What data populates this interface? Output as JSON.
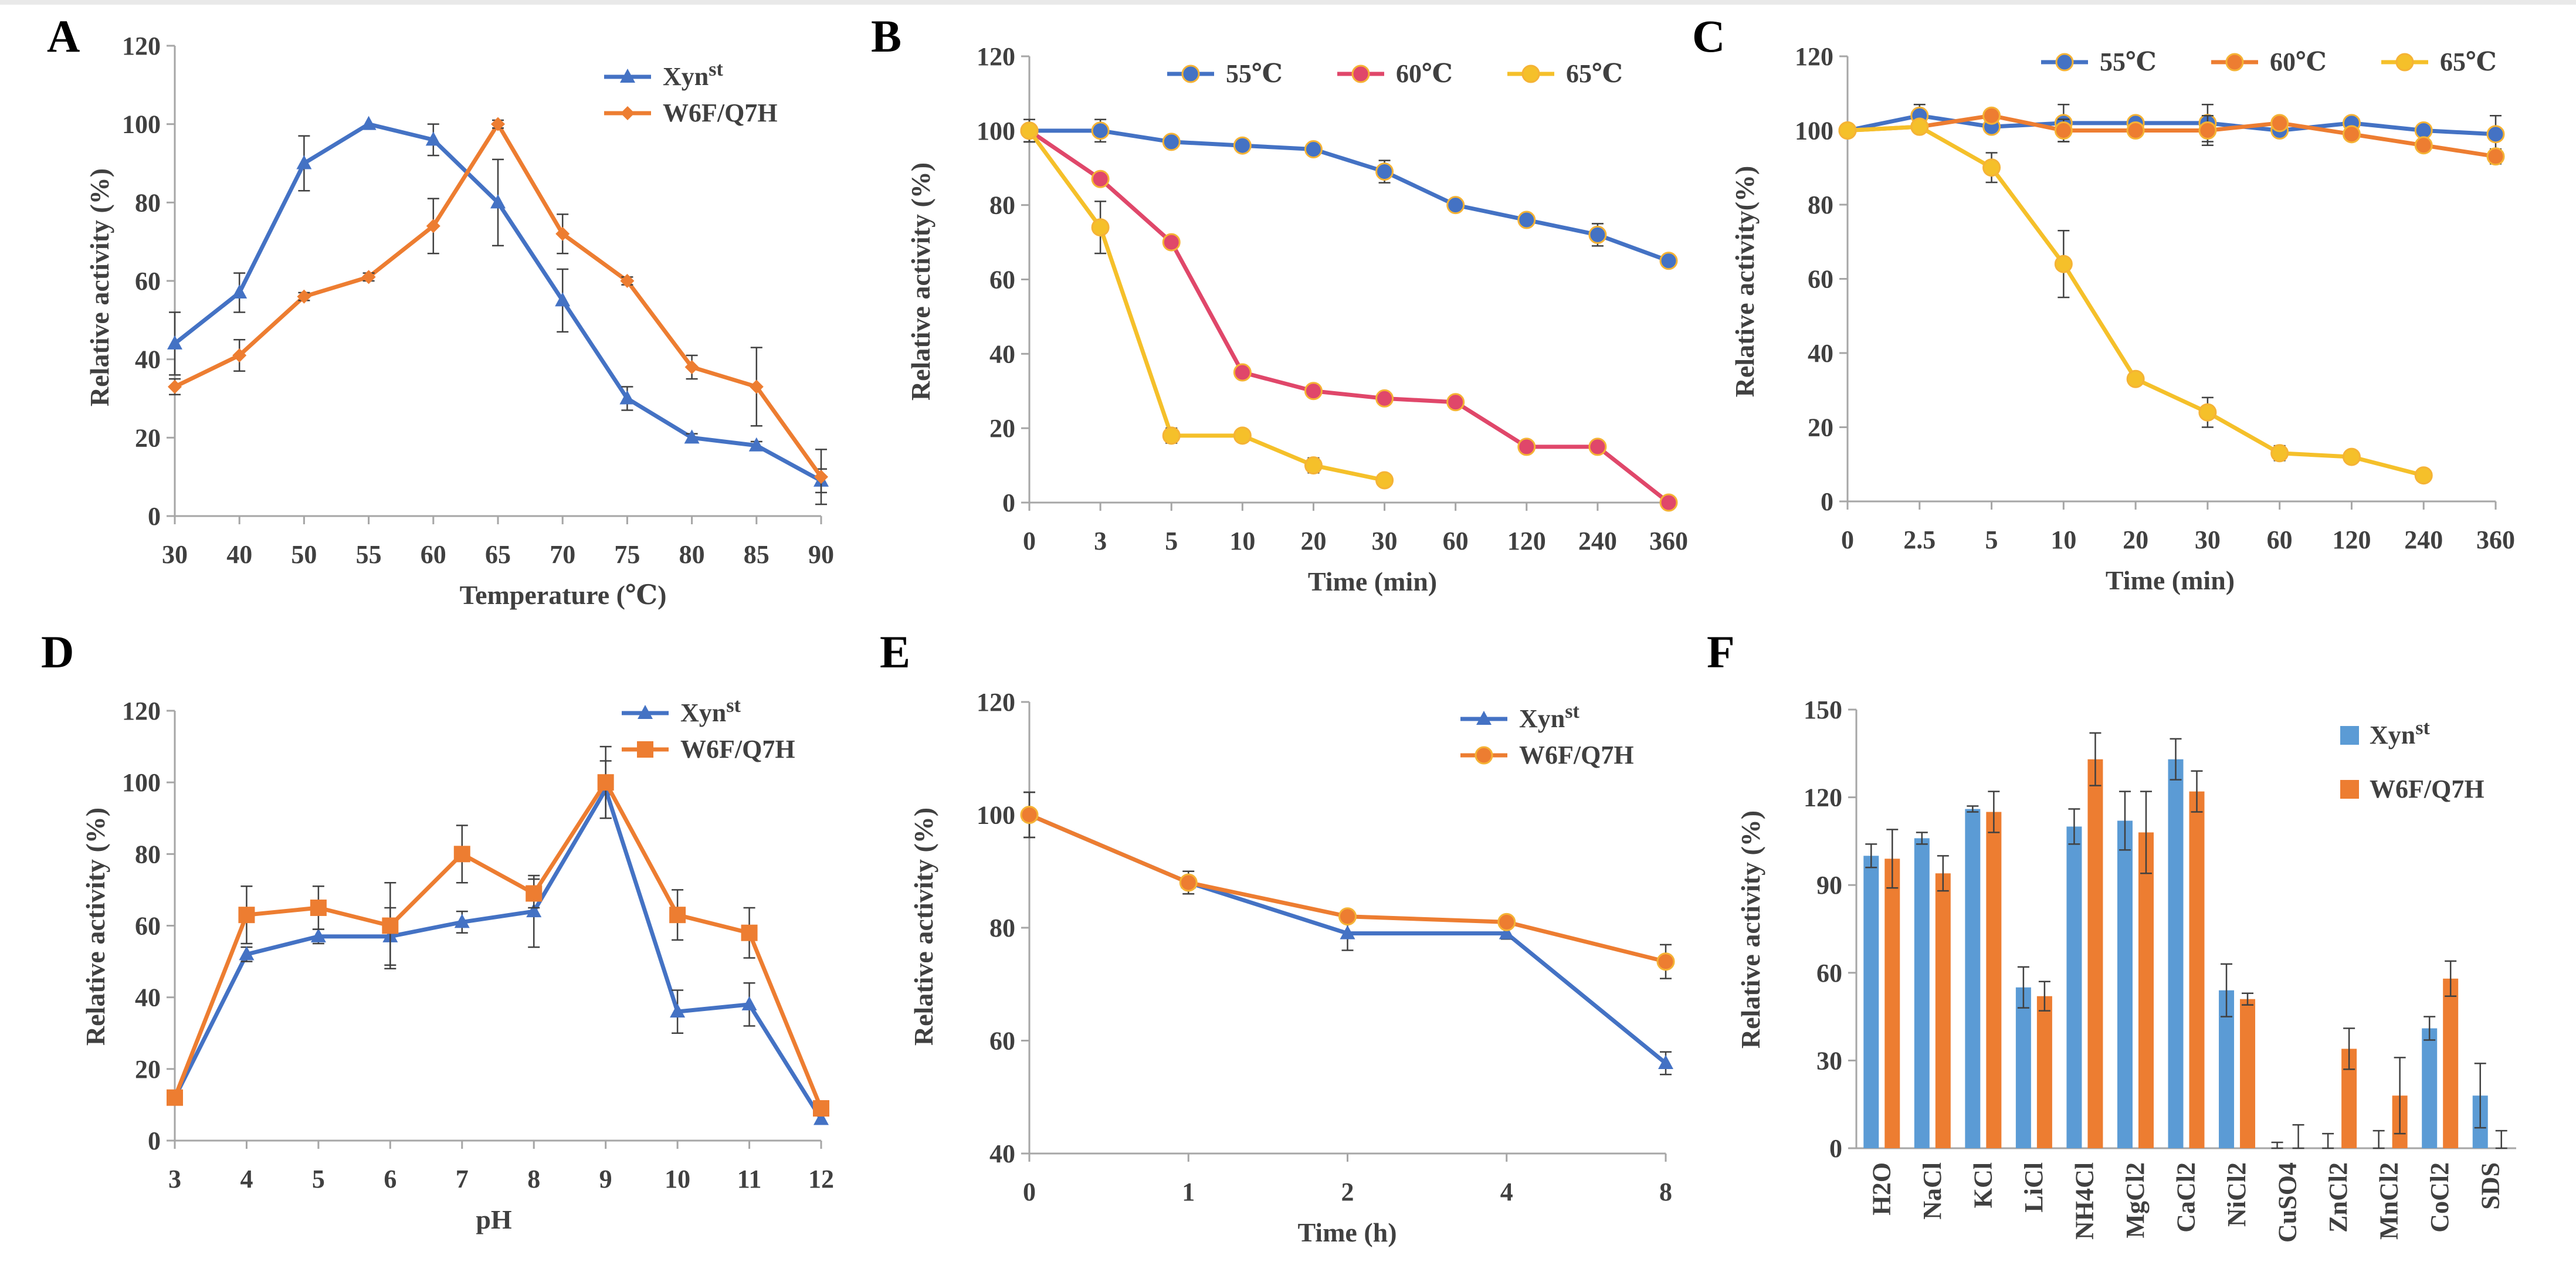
{
  "colors": {
    "xyn": "#4472C4",
    "w6f": "#ED7D31",
    "t55": "#4472C4",
    "t60": "#E0476A",
    "t65": "#F5C02A",
    "axis": "#A6A6A6",
    "text": "#404040",
    "error": "#404040"
  },
  "chart_data": [
    {
      "panel": "A",
      "type": "line",
      "categories": [
        "30",
        "40",
        "50",
        "55",
        "60",
        "65",
        "70",
        "75",
        "80",
        "85",
        "90"
      ],
      "xlabel": "Temperature (℃)",
      "ylabel": "Relative activity (%)",
      "ylim": [
        0,
        120
      ],
      "yticks": [
        0,
        20,
        40,
        60,
        80,
        100,
        120
      ],
      "legend_position": "top-right",
      "series": [
        {
          "name": "Xyn",
          "sup": "st",
          "color": "#4472C4",
          "marker": "triangle",
          "values": [
            44,
            57,
            90,
            100,
            96,
            80,
            55,
            30,
            20,
            18,
            9
          ],
          "errors": [
            8,
            5,
            7,
            0,
            4,
            11,
            8,
            3,
            1,
            1,
            3
          ]
        },
        {
          "name": "W6F/Q7H",
          "sup": "",
          "color": "#ED7D31",
          "marker": "diamond",
          "values": [
            33,
            41,
            56,
            61,
            74,
            100,
            72,
            60,
            38,
            33,
            10
          ],
          "errors": [
            2,
            4,
            1,
            1,
            7,
            1,
            5,
            1,
            3,
            10,
            7
          ]
        }
      ]
    },
    {
      "panel": "B",
      "type": "line",
      "categories": [
        "0",
        "3",
        "5",
        "10",
        "20",
        "30",
        "60",
        "120",
        "240",
        "360"
      ],
      "xlabel": "Time (min)",
      "ylabel": "Relative activity (%)",
      "ylim": [
        0,
        120
      ],
      "yticks": [
        0,
        20,
        40,
        60,
        80,
        100,
        120
      ],
      "legend_position": "top",
      "series": [
        {
          "name": "55℃",
          "color": "#4472C4",
          "marker": "circle",
          "values": [
            100,
            100,
            97,
            96,
            95,
            89,
            80,
            76,
            72,
            65
          ],
          "errors": [
            3,
            3,
            1,
            1,
            1,
            3,
            1,
            1,
            3,
            1
          ]
        },
        {
          "name": "60℃",
          "color": "#E0476A",
          "marker": "circle",
          "values": [
            100,
            87,
            70,
            35,
            30,
            28,
            27,
            15,
            15,
            0
          ],
          "errors": [
            3,
            1,
            1,
            1,
            1,
            1,
            1,
            1,
            1,
            1
          ]
        },
        {
          "name": "65℃",
          "color": "#F5C02A",
          "marker": "circle",
          "values": [
            100,
            74,
            18,
            18,
            10,
            6,
            null,
            null,
            null,
            null
          ],
          "errors": [
            3,
            7,
            2,
            1,
            2,
            1,
            null,
            null,
            null,
            null
          ]
        }
      ]
    },
    {
      "panel": "C",
      "type": "line",
      "categories": [
        "0",
        "2.5",
        "5",
        "10",
        "20",
        "30",
        "60",
        "120",
        "240",
        "360"
      ],
      "xlabel": "Time (min)",
      "ylabel": "Relative activity(%)",
      "ylim": [
        0,
        120
      ],
      "yticks": [
        0,
        20,
        40,
        60,
        80,
        100,
        120
      ],
      "legend_position": "top",
      "series": [
        {
          "name": "55℃",
          "color": "#4472C4",
          "marker": "circle",
          "values": [
            100,
            104,
            101,
            102,
            102,
            102,
            100,
            102,
            100,
            99
          ],
          "errors": [
            1,
            3,
            1,
            5,
            1,
            5,
            1,
            1,
            1,
            5
          ]
        },
        {
          "name": "60℃",
          "color": "#ED7D31",
          "marker": "circle",
          "values": [
            100,
            101,
            104,
            100,
            100,
            100,
            102,
            99,
            96,
            93
          ],
          "errors": [
            1,
            1,
            1,
            3,
            1,
            4,
            1,
            1,
            1,
            2
          ]
        },
        {
          "name": "65℃",
          "color": "#F5C02A",
          "marker": "circle",
          "values": [
            100,
            101,
            90,
            64,
            33,
            24,
            13,
            12,
            7,
            null
          ],
          "errors": [
            1,
            1,
            4,
            9,
            1,
            4,
            2,
            1,
            1,
            null
          ]
        }
      ]
    },
    {
      "panel": "D",
      "type": "line",
      "categories": [
        "3",
        "4",
        "5",
        "6",
        "7",
        "8",
        "9",
        "10",
        "11",
        "12"
      ],
      "xlabel": "pH",
      "ylabel": "Relative activity (%)",
      "ylim": [
        0,
        120
      ],
      "yticks": [
        0,
        20,
        40,
        60,
        80,
        100,
        120
      ],
      "legend_position": "top-right",
      "series": [
        {
          "name": "Xyn",
          "sup": "st",
          "color": "#4472C4",
          "marker": "triangle",
          "values": [
            12,
            52,
            57,
            57,
            61,
            64,
            98,
            36,
            38,
            6
          ],
          "errors": [
            1,
            2,
            2,
            8,
            3,
            10,
            8,
            6,
            6,
            1
          ]
        },
        {
          "name": "W6F/Q7H",
          "sup": "",
          "color": "#ED7D31",
          "marker": "square",
          "values": [
            12,
            63,
            65,
            60,
            80,
            69,
            100,
            63,
            58,
            9
          ],
          "errors": [
            1,
            8,
            6,
            12,
            8,
            4,
            10,
            7,
            7,
            2
          ]
        }
      ]
    },
    {
      "panel": "E",
      "type": "line",
      "categories": [
        "0",
        "1",
        "2",
        "4",
        "8"
      ],
      "xlabel": "Time (h)",
      "ylabel": "Relative activity (%)",
      "ylim": [
        40,
        120
      ],
      "yticks": [
        40,
        60,
        80,
        100,
        120
      ],
      "legend_position": "top-right",
      "series": [
        {
          "name": "Xyn",
          "sup": "st",
          "color": "#4472C4",
          "marker": "triangle",
          "values": [
            100,
            88,
            79,
            79,
            56
          ],
          "errors": [
            4,
            2,
            3,
            1,
            2
          ]
        },
        {
          "name": "W6F/Q7H",
          "sup": "",
          "color": "#ED7D31",
          "marker": "circle",
          "values": [
            100,
            88,
            82,
            81,
            74
          ],
          "errors": [
            4,
            1,
            1,
            1,
            3
          ]
        }
      ]
    },
    {
      "panel": "F",
      "type": "bar",
      "categories": [
        "H2O",
        "NaCl",
        "KCl",
        "LiCl",
        "NH4Cl",
        "MgCl2",
        "CaCl2",
        "NiCl2",
        "CuSO4",
        "ZnCl2",
        "MnCl2",
        "CoCl2",
        "SDS"
      ],
      "xlabel": "",
      "ylabel": "Relative activity (%)",
      "ylim": [
        0,
        150
      ],
      "yticks": [
        0,
        30,
        60,
        90,
        120,
        150
      ],
      "legend_position": "right",
      "series": [
        {
          "name": "Xyn",
          "sup": "st",
          "color": "#5B9BD5",
          "values": [
            100,
            106,
            116,
            55,
            110,
            112,
            133,
            54,
            0,
            0,
            0,
            41,
            18
          ],
          "errors": [
            4,
            2,
            1,
            7,
            6,
            10,
            7,
            9,
            2,
            5,
            6,
            4,
            11
          ]
        },
        {
          "name": "W6F/Q7H",
          "sup": "",
          "color": "#ED7D31",
          "values": [
            99,
            94,
            115,
            52,
            133,
            108,
            122,
            51,
            0,
            34,
            18,
            58,
            0
          ],
          "errors": [
            10,
            6,
            7,
            5,
            9,
            14,
            7,
            2,
            8,
            7,
            13,
            6,
            6
          ]
        }
      ]
    }
  ]
}
